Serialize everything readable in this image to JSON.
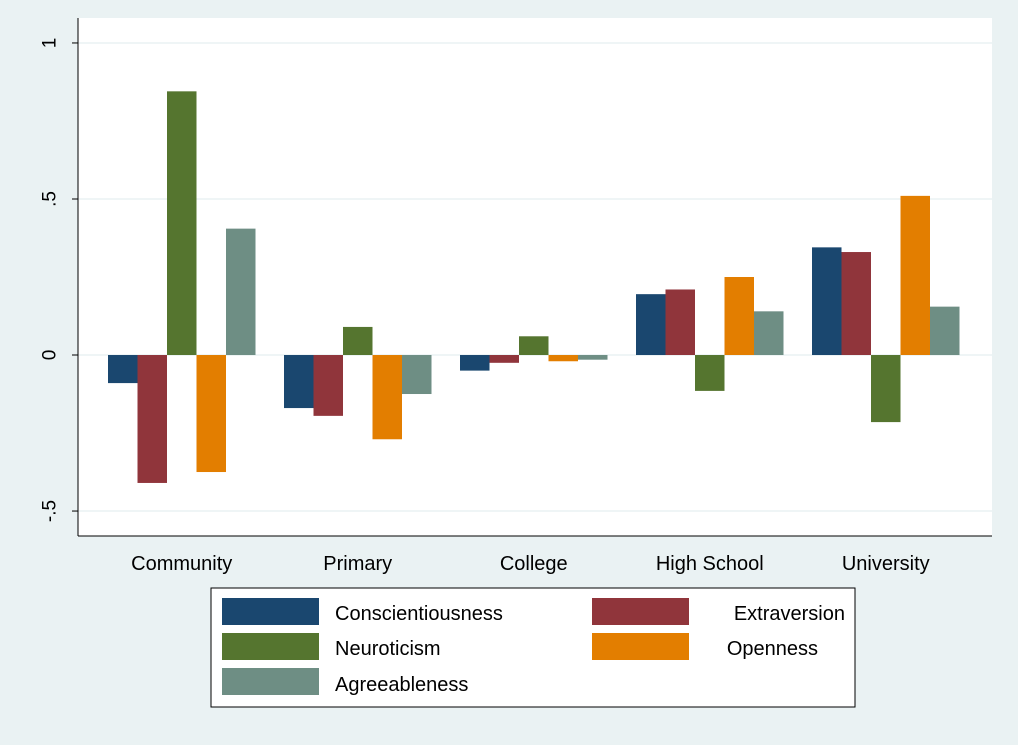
{
  "chart_data": {
    "type": "bar",
    "categories": [
      "Community",
      "Primary",
      "College",
      "High School",
      "University"
    ],
    "series": [
      {
        "name": "Conscientiousness",
        "color": "#1a476f",
        "values": [
          -0.09,
          -0.17,
          -0.05,
          0.195,
          0.345
        ]
      },
      {
        "name": "Extraversion",
        "color": "#90353b",
        "values": [
          -0.41,
          -0.195,
          -0.025,
          0.21,
          0.33
        ]
      },
      {
        "name": "Neuroticism",
        "color": "#55752f",
        "values": [
          0.845,
          0.09,
          0.06,
          -0.115,
          -0.215
        ]
      },
      {
        "name": "Openness",
        "color": "#e37e00",
        "values": [
          -0.375,
          -0.27,
          -0.02,
          0.25,
          0.51
        ]
      },
      {
        "name": "Agreeableness",
        "color": "#6e8e84",
        "values": [
          0.405,
          -0.125,
          -0.015,
          0.14,
          0.155
        ]
      }
    ],
    "ylim": [
      -0.58,
      1.08
    ],
    "yticks": [
      -0.5,
      0,
      0.5,
      1
    ],
    "ytick_labels": [
      "-.5",
      "0",
      ".5",
      "1"
    ],
    "grid": true,
    "legend_position": "bottom",
    "title": "",
    "xlabel": "",
    "ylabel": "",
    "colors": {
      "background": "#eaf2f3",
      "plot_background": "#ffffff",
      "grid": "#eaf2f3"
    }
  }
}
